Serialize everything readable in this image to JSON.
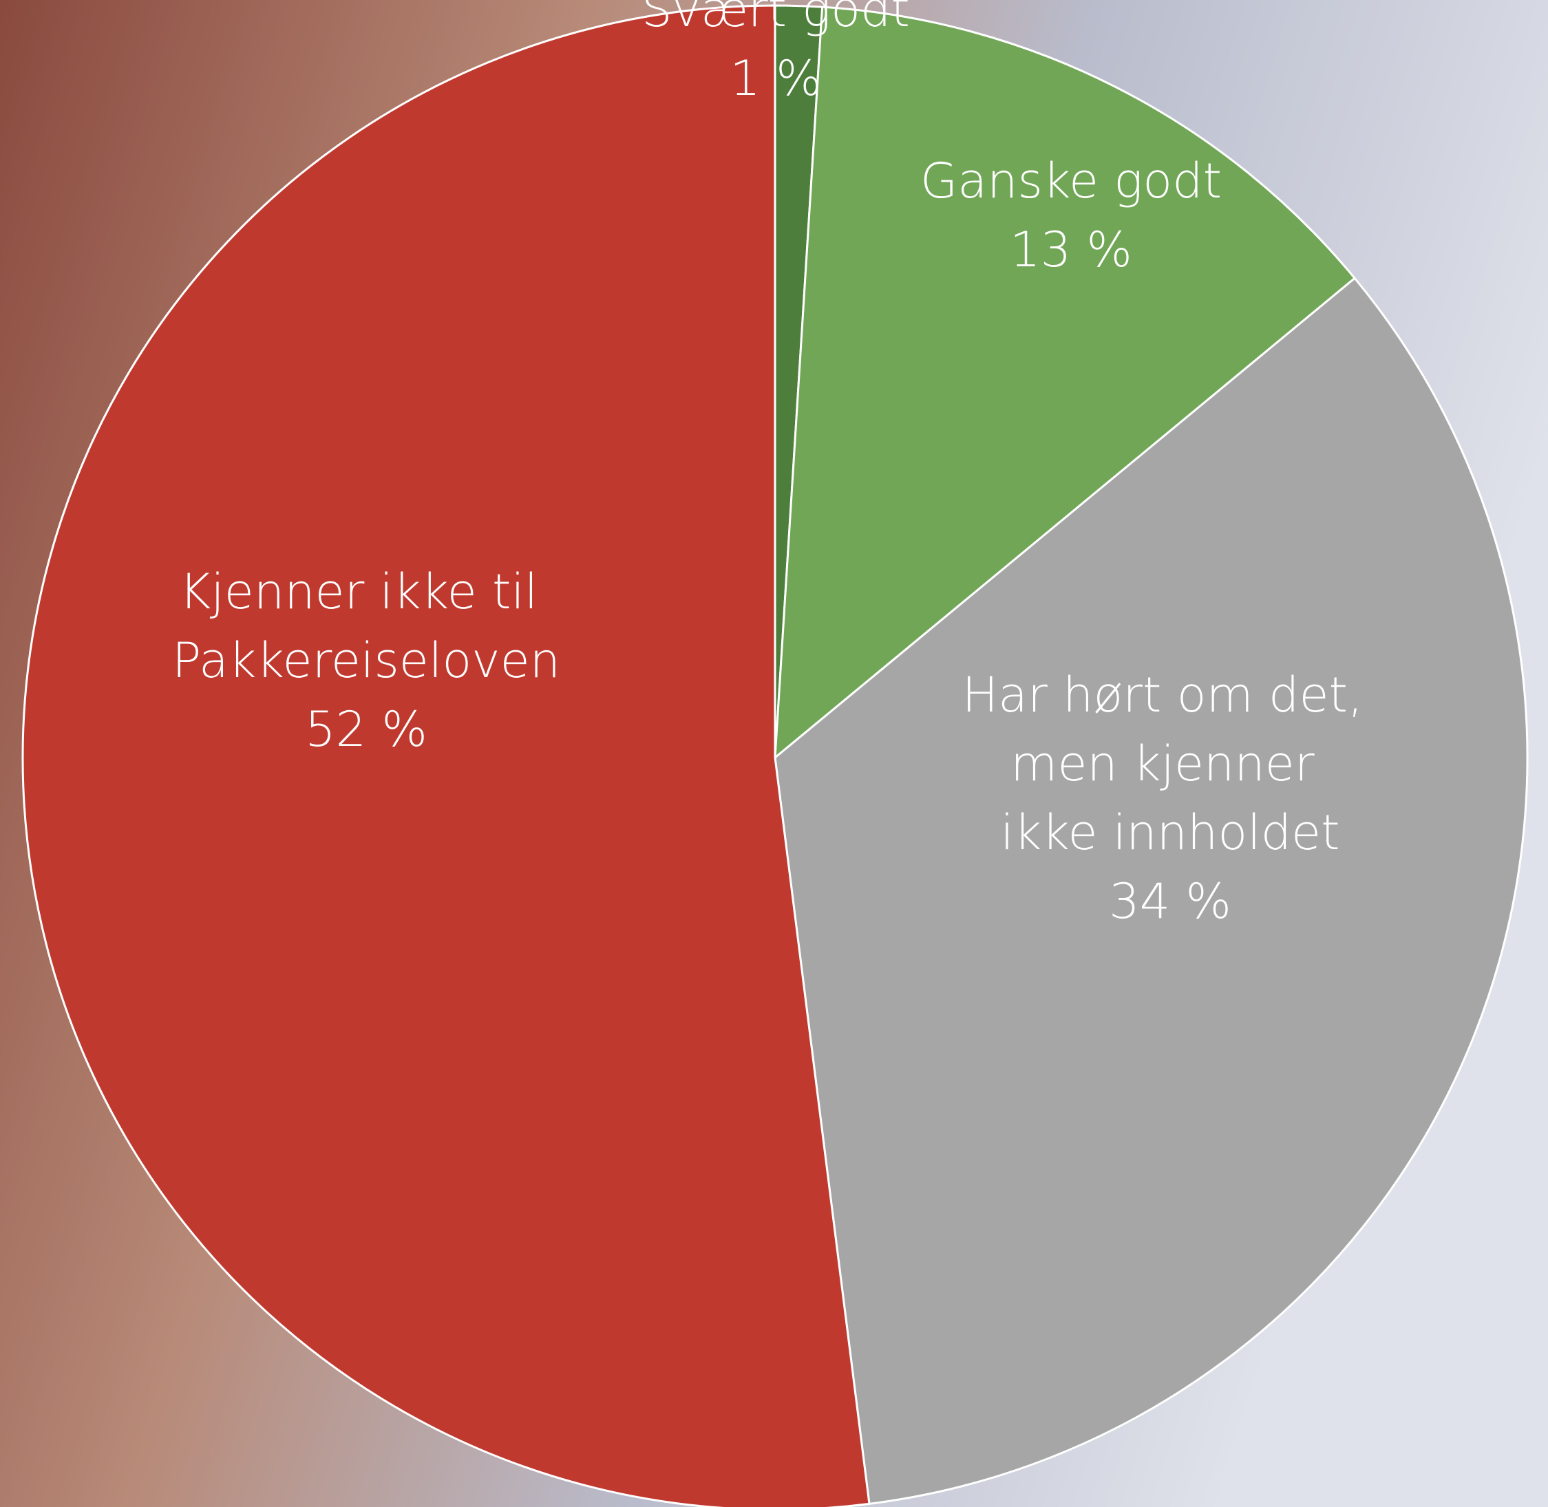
{
  "chart_data": {
    "type": "pie",
    "categories": [
      "Svært godt",
      "Ganske godt",
      "Har hørt om det, men kjenner ikke innholdet",
      "Kjenner ikke til Pakkereiseloven"
    ],
    "values": [
      1,
      13,
      34,
      52
    ],
    "value_labels": [
      "1 %",
      "13 %",
      "34 %",
      "52 %"
    ],
    "colors": [
      "#4e7e3b",
      "#70a656",
      "#a6a6a6",
      "#c0392f"
    ]
  }
}
